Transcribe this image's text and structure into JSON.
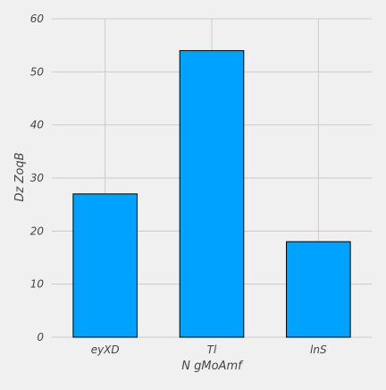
{
  "chart_data": {
    "type": "bar",
    "title": "",
    "categories": [
      "eyXD",
      "Tl",
      "lnS"
    ],
    "values": [
      27,
      54,
      18
    ],
    "xlabel": "N gMoAmf",
    "ylabel": "Dz  ZoqB",
    "ylim": [
      0,
      60
    ],
    "yticks": [
      0,
      10,
      20,
      30,
      40,
      50,
      60
    ],
    "grid": true,
    "legend": "none",
    "colors": {
      "bar_fill": "#00a2ff",
      "bar_edge": "#000000",
      "background": "#f0f0f0",
      "grid": "#cbcbcb",
      "text": "#444444"
    }
  }
}
